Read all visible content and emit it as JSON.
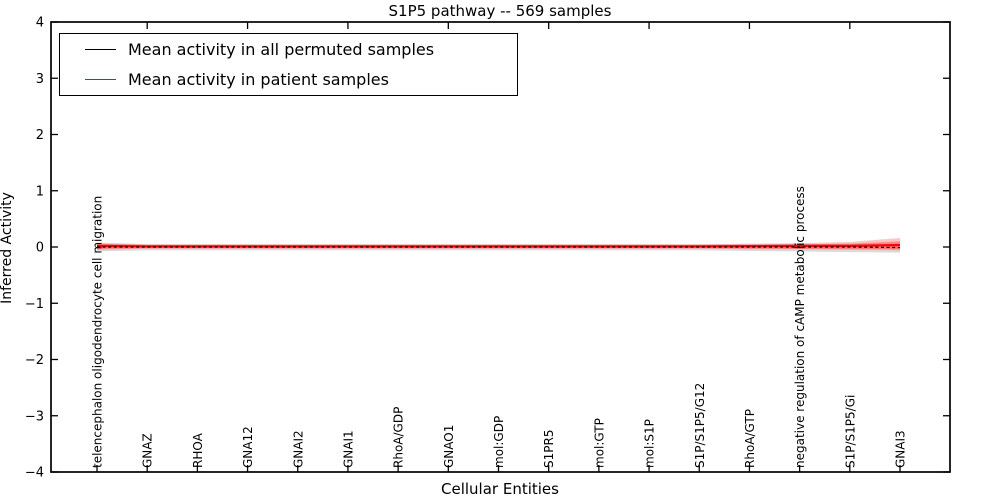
{
  "figure": {
    "background": "#ffffff",
    "frame_color": "#000000"
  },
  "chart_data": {
    "type": "line",
    "title": "S1P5 pathway -- 569 samples",
    "xlabel": "Cellular Entities",
    "ylabel": "Inferred Activity",
    "ylim": [
      -4,
      4
    ],
    "yticks": [
      4,
      3,
      2,
      1,
      0,
      -1,
      -2,
      -3,
      -4
    ],
    "ytick_labels": [
      "4",
      "3",
      "2",
      "1",
      "0",
      "−1",
      "−2",
      "−3",
      "−4"
    ],
    "grid": false,
    "tick_direction": "in",
    "categories": [
      "telencephalon oligodendrocyte cell migration",
      "GNAZ",
      "RHOA",
      "GNA12",
      "GNAI2",
      "GNAI1",
      "RhoA/GDP",
      "GNAO1",
      "mol:GDP",
      "S1PR5",
      "mol:GTP",
      "mol:S1P",
      "S1P/S1P5/G12",
      "RhoA/GTP",
      "negative regulation of cAMP metabolic process",
      "S1P/S1P5/Gi",
      "GNAI3"
    ],
    "legend": {
      "position": "upper left",
      "border_color": "#000000",
      "background": "#ffffff"
    },
    "series": [
      {
        "name": "Mean activity in all permuted samples",
        "line_color": "#000000",
        "line_style": "dashed",
        "band_color": "#999999",
        "band_opacity": 0.35,
        "mean": [
          0,
          0,
          0,
          0,
          0,
          0,
          0,
          0,
          0,
          0,
          0,
          0,
          0,
          0,
          0,
          0,
          -0.01
        ],
        "band_upper": [
          0.05,
          0.04,
          0.04,
          0.04,
          0.04,
          0.04,
          0.04,
          0.04,
          0.04,
          0.04,
          0.04,
          0.04,
          0.04,
          0.04,
          0.05,
          0.05,
          0.05
        ],
        "band_lower": [
          -0.08,
          -0.06,
          -0.06,
          -0.06,
          -0.06,
          -0.06,
          -0.06,
          -0.06,
          -0.06,
          -0.06,
          -0.06,
          -0.06,
          -0.06,
          -0.07,
          -0.08,
          -0.09,
          -0.1
        ]
      },
      {
        "name": "Mean activity in patient samples",
        "line_color": "#ff0000",
        "line_style": "solid",
        "band_color": "#ff4040",
        "band_opacity": 0.3,
        "mean": [
          0.02,
          0.01,
          0.01,
          0.01,
          0.01,
          0.01,
          0.01,
          0.01,
          0.01,
          0.01,
          0.01,
          0.01,
          0.01,
          0.015,
          0.02,
          0.02,
          0.035
        ],
        "band_upper": [
          0.06,
          0.04,
          0.04,
          0.04,
          0.04,
          0.04,
          0.04,
          0.04,
          0.04,
          0.04,
          0.04,
          0.04,
          0.04,
          0.045,
          0.05,
          0.06,
          0.1
        ],
        "band_lower": [
          -0.03,
          -0.02,
          -0.02,
          -0.02,
          -0.02,
          -0.02,
          -0.02,
          -0.02,
          -0.02,
          -0.02,
          -0.02,
          -0.02,
          -0.02,
          -0.025,
          -0.03,
          -0.03,
          -0.04
        ],
        "band2_upper": [
          0.08,
          0.05,
          0.05,
          0.05,
          0.05,
          0.05,
          0.05,
          0.05,
          0.05,
          0.05,
          0.05,
          0.05,
          0.05,
          0.06,
          0.07,
          0.09,
          0.16
        ],
        "band2_lower": [
          -0.05,
          -0.03,
          -0.03,
          -0.03,
          -0.03,
          -0.03,
          -0.03,
          -0.03,
          -0.03,
          -0.03,
          -0.03,
          -0.03,
          -0.03,
          -0.04,
          -0.04,
          -0.05,
          -0.06
        ]
      }
    ]
  }
}
